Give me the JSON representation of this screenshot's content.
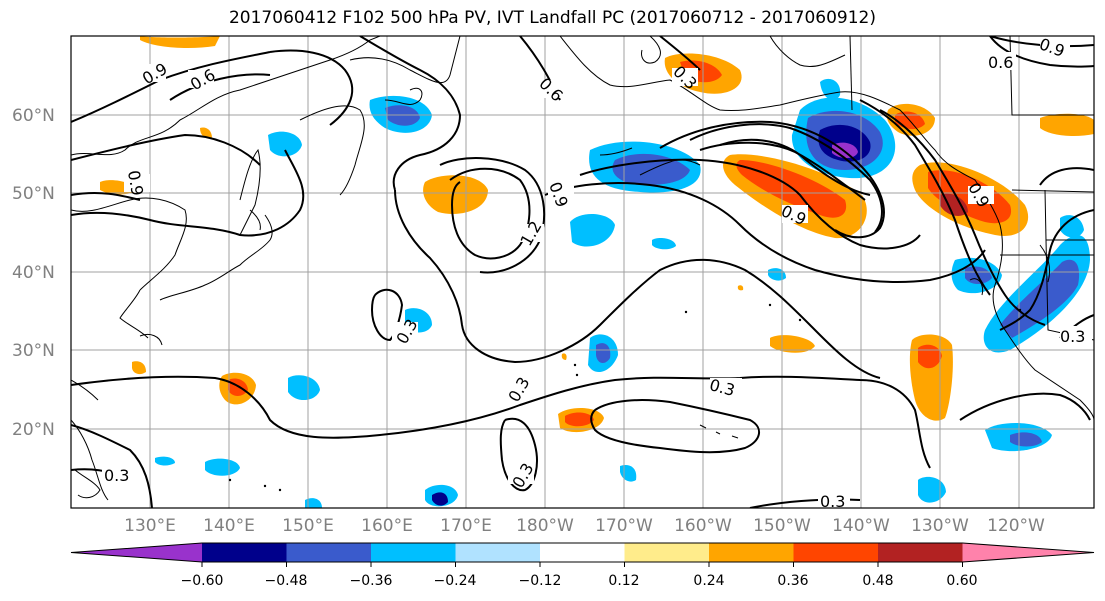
{
  "title": "2017060412 F102 500 hPa PV, IVT Landfall PC (2017060712 - 2017060912)",
  "lat_labels": [
    "60°N",
    "50°N",
    "40°N",
    "30°N",
    "20°N"
  ],
  "lon_labels": [
    "130°E",
    "140°E",
    "150°E",
    "160°E",
    "170°E",
    "180°W",
    "170°W",
    "160°W",
    "150°W",
    "140°W",
    "130°W",
    "120°W"
  ],
  "contour_labels": [
    "0.9",
    "0.6",
    "0.6",
    "0.9",
    "1.2",
    "0.9",
    "0.9",
    "0.3",
    "0.3",
    "0.3",
    "0.3",
    "0.3",
    "0.3",
    "0.6",
    "0.9",
    "0.3",
    "0.9",
    "0.3"
  ],
  "colorbar": {
    "ticks": [
      "−0.60",
      "−0.48",
      "−0.36",
      "−0.24",
      "−0.12",
      "0.12",
      "0.24",
      "0.36",
      "0.48",
      "0.60"
    ],
    "colors": [
      "#9932cc",
      "#00008b",
      "#3a5bcc",
      "#00bfff",
      "#b0e2ff",
      "#ffffff",
      "#ffec8b",
      "#ffa500",
      "#ff4500",
      "#b22222",
      "#ff82ab"
    ]
  }
}
